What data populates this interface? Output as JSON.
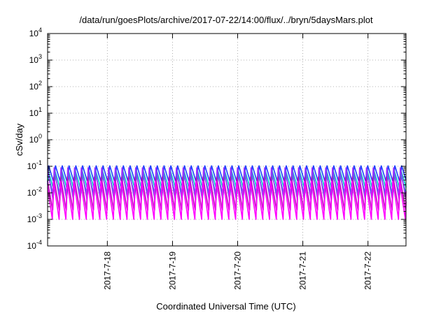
{
  "chart_data": {
    "type": "line",
    "title": "/data/run/goesPlots/archive/2017-07-22/14:00/flux/../bryn/5daysMars.plot",
    "xlabel": "Coordinated Universal Time (UTC)",
    "ylabel": "cSv/day",
    "yscale": "log",
    "ylim": [
      0.0001,
      10000
    ],
    "xlim": [
      "2017-07-17 02:00",
      "2017-07-22 14:00"
    ],
    "grid": true,
    "yticks": [
      {
        "base": "10",
        "exp": "-4"
      },
      {
        "base": "10",
        "exp": "-3"
      },
      {
        "base": "10",
        "exp": "-2"
      },
      {
        "base": "10",
        "exp": "-1"
      },
      {
        "base": "10",
        "exp": "0"
      },
      {
        "base": "10",
        "exp": "1"
      },
      {
        "base": "10",
        "exp": "2"
      },
      {
        "base": "10",
        "exp": "3"
      },
      {
        "base": "10",
        "exp": "4"
      }
    ],
    "xticks": [
      "2017-7-18",
      "2017-7-19",
      "2017-7-20",
      "2017-7-21",
      "2017-7-22"
    ],
    "sawtooth_period_hours": 2.5,
    "series": [
      {
        "color": "#1f3fff",
        "peak": 0.11,
        "trough": 0.02
      },
      {
        "color": "#00c8c8",
        "peak": 0.07,
        "trough": 0.012
      },
      {
        "color": "#1aa0d0",
        "peak": 0.05,
        "trough": 0.008
      },
      {
        "color": "#9a2cff",
        "peak": 0.09,
        "trough": 0.005
      },
      {
        "color": "#c000c0",
        "peak": 0.04,
        "trough": 0.002
      },
      {
        "color": "#ff00ff",
        "peak": 0.03,
        "trough": 0.001
      }
    ]
  }
}
